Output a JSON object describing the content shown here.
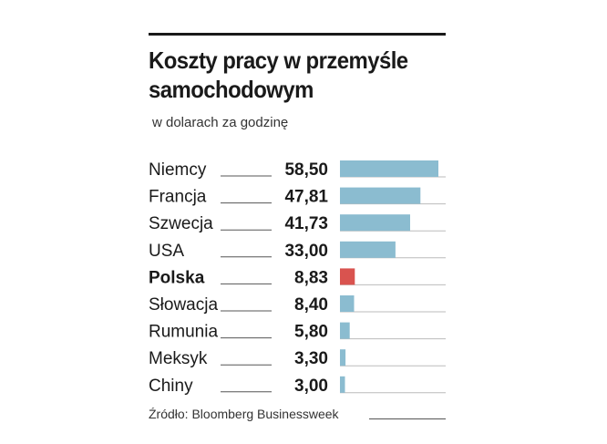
{
  "title": "Koszty pracy w przemyśle samochodowym",
  "subtitle": "w dolarach za godzinę",
  "source": "Źródło: Bloomberg Businessweek",
  "colors": {
    "bar_default": "#8bbcd0",
    "bar_highlight": "#d9534f",
    "text": "#1a1a1a",
    "leader": "#555555"
  },
  "chart_data": {
    "type": "bar",
    "orientation": "horizontal",
    "categories": [
      "Niemcy",
      "Francja",
      "Szwecja",
      "USA",
      "Polska",
      "Słowacja",
      "Rumunia",
      "Meksyk",
      "Chiny"
    ],
    "values": [
      58.5,
      47.81,
      41.73,
      33.0,
      8.83,
      8.4,
      5.8,
      3.3,
      3.0
    ],
    "value_labels": [
      "58,50",
      "47,81",
      "41,73",
      "33,00",
      "8,83",
      "8,40",
      "5,80",
      "3,30",
      "3,00"
    ],
    "highlight": "Polska",
    "title": "Koszty pracy w przemyśle samochodowym",
    "subtitle": "w dolarach za godzinę",
    "xlim": [
      0,
      58.5
    ],
    "grid": false,
    "legend": "none"
  }
}
